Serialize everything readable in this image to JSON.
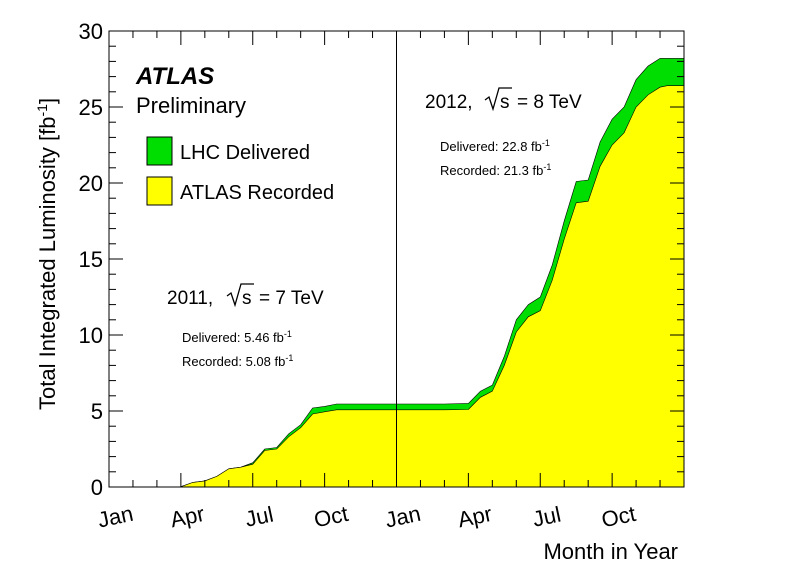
{
  "chart_data": {
    "type": "area",
    "title": "",
    "xlabel": "Month in Year",
    "ylabel": "Total Integrated Luminosity  [fb",
    "ylabel_sup": "-1",
    "ylabel_close": "]",
    "ylim": [
      0,
      30
    ],
    "xlim": [
      0,
      24
    ],
    "y_ticks": [
      0,
      5,
      10,
      15,
      20,
      25,
      30
    ],
    "x_ticks": [
      {
        "x": 0,
        "label": "Jan"
      },
      {
        "x": 3,
        "label": "Apr"
      },
      {
        "x": 6,
        "label": "Jul"
      },
      {
        "x": 9,
        "label": "Oct"
      },
      {
        "x": 12,
        "label": "Jan"
      },
      {
        "x": 15,
        "label": "Apr"
      },
      {
        "x": 18,
        "label": "Jul"
      },
      {
        "x": 21,
        "label": "Oct"
      }
    ],
    "year_divider_x": 12,
    "logo": {
      "name": "ATLAS",
      "sub": "Preliminary"
    },
    "legend_position": "top-left",
    "series": [
      {
        "name": "LHC Delivered",
        "color": "#00dd00",
        "x": [
          0,
          2.5,
          3,
          3.5,
          4,
          4.5,
          5,
          5.5,
          6,
          6.5,
          7,
          7.5,
          8,
          8.5,
          9,
          9.5,
          10,
          10.5,
          11,
          11.5,
          12,
          13,
          14,
          15,
          15.5,
          16,
          16.5,
          17,
          17.5,
          18,
          18.5,
          19,
          19.5,
          20,
          20.5,
          21,
          21.5,
          22,
          22.5,
          23,
          23.3,
          24
        ],
        "values": [
          0,
          0,
          0.02,
          0.3,
          0.4,
          0.7,
          1.2,
          1.3,
          1.6,
          2.5,
          2.6,
          3.5,
          4.1,
          5.2,
          5.3,
          5.46,
          5.46,
          5.46,
          5.46,
          5.46,
          5.46,
          5.46,
          5.46,
          5.5,
          6.3,
          6.7,
          8.6,
          11.0,
          12.0,
          12.5,
          14.6,
          17.5,
          20.1,
          20.2,
          22.7,
          24.2,
          25.0,
          26.8,
          27.7,
          28.2,
          28.2,
          28.2
        ]
      },
      {
        "name": "ATLAS Recorded",
        "color": "#ffff00",
        "x": [
          0,
          2.5,
          3,
          3.5,
          4,
          4.5,
          5,
          5.5,
          6,
          6.5,
          7,
          7.5,
          8,
          8.5,
          9,
          9.5,
          10,
          10.5,
          11,
          11.5,
          12,
          13,
          14,
          15,
          15.5,
          16,
          16.5,
          17,
          17.5,
          18,
          18.5,
          19,
          19.5,
          20,
          20.5,
          21,
          21.5,
          22,
          22.5,
          23,
          23.3,
          24
        ],
        "values": [
          0,
          0,
          0.02,
          0.3,
          0.4,
          0.7,
          1.2,
          1.3,
          1.5,
          2.4,
          2.5,
          3.3,
          3.9,
          4.8,
          4.95,
          5.08,
          5.08,
          5.08,
          5.08,
          5.08,
          5.08,
          5.08,
          5.08,
          5.1,
          5.9,
          6.3,
          8.0,
          10.2,
          11.2,
          11.6,
          13.6,
          16.3,
          18.7,
          18.8,
          21.1,
          22.5,
          23.3,
          25.0,
          25.8,
          26.3,
          26.4,
          26.4
        ]
      }
    ],
    "annotations": [
      {
        "id": "2011",
        "heading_pre": "2011,",
        "sqrt_s": "s",
        "heading_post": "= 7 TeV",
        "delivered_label": "Delivered: 5.46 fb",
        "recorded_label": "Recorded: 5.08 fb",
        "unit_sup": "-1"
      },
      {
        "id": "2012",
        "heading_pre": "2012,",
        "sqrt_s": "s",
        "heading_post": "= 8 TeV",
        "delivered_label": "Delivered: 22.8 fb",
        "recorded_label": "Recorded: 21.3 fb",
        "unit_sup": "-1"
      }
    ]
  }
}
